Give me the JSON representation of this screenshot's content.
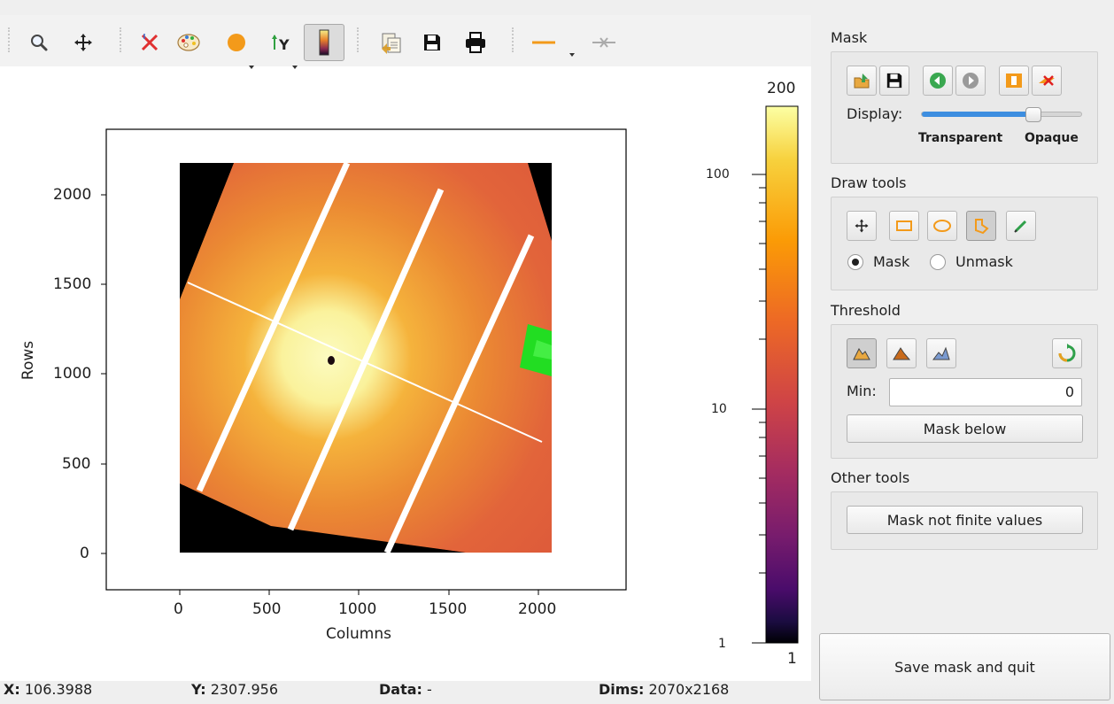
{
  "toolbar": {
    "buttons": [
      "zoom-icon",
      "pan-icon",
      "reset-zoom-icon",
      "colormap-icon",
      "point-marker-icon",
      "y-axis-origin-icon",
      "colorbar-icon",
      "copy-icon",
      "save-icon",
      "print-icon",
      "line-style-icon",
      "crosshair-icon"
    ]
  },
  "plot": {
    "xlabel": "Columns",
    "ylabel": "Rows",
    "xticks": [
      "0",
      "500",
      "1000",
      "1500",
      "2000"
    ],
    "yticks": [
      "0",
      "500",
      "1000",
      "1500",
      "2000"
    ],
    "colorbar": {
      "top_label": "200",
      "bottom_label": "1",
      "ticks": [
        "100",
        "10",
        "1"
      ],
      "scale": "log",
      "colormap": "inferno"
    }
  },
  "status": {
    "x_label": "X:",
    "x_value": "106.3988",
    "y_label": "Y:",
    "y_value": "2307.956",
    "data_label": "Data:",
    "data_value": "-",
    "dims_label": "Dims:",
    "dims_value": "2070x2168"
  },
  "mask": {
    "title": "Mask",
    "display_label": "Display:",
    "transparent_label": "Transparent",
    "opaque_label": "Opaque",
    "slider_level": 0.7
  },
  "draw_tools": {
    "title": "Draw tools",
    "mask_label": "Mask",
    "unmask_label": "Unmask"
  },
  "threshold": {
    "title": "Threshold",
    "min_label": "Min:",
    "min_value": "0",
    "mask_below_label": "Mask below"
  },
  "other_tools": {
    "title": "Other tools",
    "mask_not_finite_label": "Mask not finite values"
  },
  "save_label": "Save mask and quit",
  "colors": {
    "accent": "#3d8ee0",
    "mask_green": "#22dd22",
    "detector_orange": "#e0592d"
  }
}
